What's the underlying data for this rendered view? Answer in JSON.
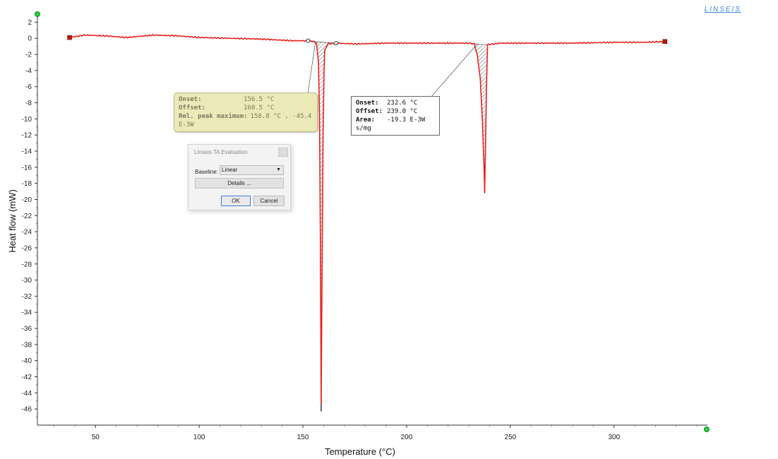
{
  "brand": {
    "label": "LINSEIS"
  },
  "chart_data": {
    "type": "line",
    "title": "",
    "xlabel": "Temperature (°C)",
    "ylabel": "Heat flow (mW)",
    "xlim": [
      22,
      345
    ],
    "ylim": [
      -48,
      3
    ],
    "xticks": [
      50,
      100,
      150,
      200,
      250,
      300
    ],
    "yticks": [
      2,
      0,
      -2,
      -4,
      -6,
      -8,
      -10,
      -12,
      -14,
      -16,
      -18,
      -20,
      -22,
      -24,
      -26,
      -28,
      -30,
      -32,
      -34,
      -36,
      -38,
      -40,
      -42,
      -44,
      -46
    ],
    "grid": false,
    "line_color": "#e8201c",
    "series": [
      {
        "values": [
          [
            37.5,
            0.1
          ],
          [
            45,
            0.4
          ],
          [
            55,
            0.3
          ],
          [
            65,
            0.1
          ],
          [
            78,
            0.4
          ],
          [
            90,
            0.3
          ],
          [
            100,
            0.1
          ],
          [
            115,
            0.0
          ],
          [
            130,
            -0.1
          ],
          [
            145,
            -0.3
          ],
          [
            152.5,
            -0.3
          ],
          [
            155,
            -0.4
          ],
          [
            156.5,
            -0.6
          ],
          [
            157.5,
            -3
          ],
          [
            158,
            -10
          ],
          [
            158.4,
            -25
          ],
          [
            158.8,
            -45.4
          ],
          [
            159.2,
            -30
          ],
          [
            159.7,
            -12
          ],
          [
            160.2,
            -4
          ],
          [
            160.5,
            -1.5
          ],
          [
            162,
            -0.7
          ],
          [
            166,
            -0.6
          ],
          [
            175,
            -0.7
          ],
          [
            190,
            -0.6
          ],
          [
            210,
            -0.6
          ],
          [
            225,
            -0.6
          ],
          [
            230,
            -0.6
          ],
          [
            232.6,
            -0.7
          ],
          [
            234,
            -2
          ],
          [
            235.5,
            -5
          ],
          [
            236.5,
            -10
          ],
          [
            237.3,
            -16
          ],
          [
            237.6,
            -19.1
          ],
          [
            238.0,
            -14
          ],
          [
            238.5,
            -6
          ],
          [
            239.0,
            -0.8
          ],
          [
            245,
            -0.6
          ],
          [
            260,
            -0.6
          ],
          [
            280,
            -0.6
          ],
          [
            300,
            -0.5
          ],
          [
            315,
            -0.5
          ],
          [
            324.5,
            -0.4
          ]
        ]
      }
    ],
    "range_markers": {
      "start": [
        37.5,
        0.1
      ],
      "end": [
        324.5,
        -0.4
      ]
    },
    "annotations": [
      {
        "id": "peak1",
        "onset_label": "Onset:",
        "onset": "156.5 °C",
        "offset_label": "Offset:",
        "offset": "160.5 °C",
        "peak_label": "Rel. peak maximum:",
        "peak": "158.8 °C ,  -45.4 E-3W",
        "baseline_points": [
          [
            152.5,
            -0.3
          ],
          [
            166,
            -0.6
          ]
        ],
        "leader_target": [
          156,
          -0.5
        ]
      },
      {
        "id": "peak2",
        "onset_label": "Onset:",
        "onset": "232.6 °C",
        "offset_label": "Offset:",
        "offset": "239.0 °C",
        "area_label": "Area:",
        "area": "-19.3 E-3W s/mg",
        "leader_target": [
          234,
          -0.7
        ]
      }
    ]
  },
  "dialog": {
    "title": "Linseis TA Evaluation",
    "baseline_label": "Baseline:",
    "baseline_value": "Linear",
    "details_label": "Details ...",
    "ok_label": "OK",
    "cancel_label": "Cancel"
  }
}
